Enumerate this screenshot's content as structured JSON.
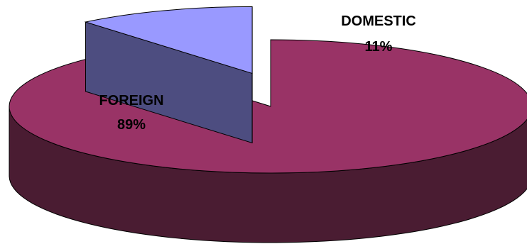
{
  "chart_data": {
    "type": "pie",
    "style": "3d-exploded",
    "title": "",
    "slices": [
      {
        "category": "FOREIGN",
        "value": 89,
        "value_label": "89%",
        "color": "#993366",
        "side_color": "#4a1c32"
      },
      {
        "category": "DOMESTIC",
        "value": 11,
        "value_label": "11%",
        "color": "#9999ff",
        "side_color": "#4d4d80"
      }
    ],
    "legend": "none"
  }
}
